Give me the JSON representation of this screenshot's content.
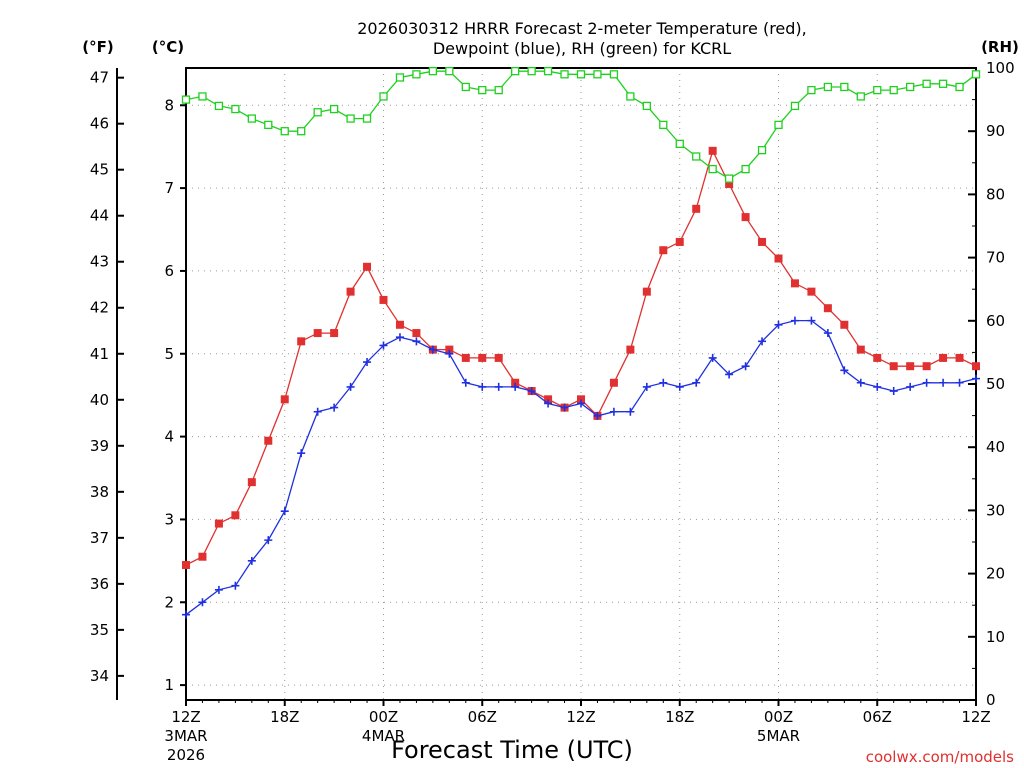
{
  "chart_data": {
    "type": "line",
    "title_line1": "2026030312 HRRR Forecast 2-meter Temperature (red),",
    "title_line2": "Dewpoint (blue), RH (green) for KCRL",
    "xlabel": "Forecast Time (UTC)",
    "credit": "coolwx.com/models",
    "units": {
      "fahrenheit": "(°F)",
      "celsius": "(°C)",
      "rh": "(RH)"
    },
    "x_hours": [
      0,
      1,
      2,
      3,
      4,
      5,
      6,
      7,
      8,
      9,
      10,
      11,
      12,
      13,
      14,
      15,
      16,
      17,
      18,
      19,
      20,
      21,
      22,
      23,
      24,
      25,
      26,
      27,
      28,
      29,
      30,
      31,
      32,
      33,
      34,
      35,
      36,
      37,
      38,
      39,
      40,
      41,
      42,
      43,
      44,
      45,
      46,
      47,
      48
    ],
    "xlim": [
      0,
      48
    ],
    "x_ticks": [
      {
        "hour": 0,
        "label": "12Z",
        "sub1": "3MAR",
        "sub2": "2026"
      },
      {
        "hour": 6,
        "label": "18Z",
        "sub1": "",
        "sub2": ""
      },
      {
        "hour": 12,
        "label": "00Z",
        "sub1": "4MAR",
        "sub2": ""
      },
      {
        "hour": 18,
        "label": "06Z",
        "sub1": "",
        "sub2": ""
      },
      {
        "hour": 24,
        "label": "12Z",
        "sub1": "",
        "sub2": ""
      },
      {
        "hour": 30,
        "label": "18Z",
        "sub1": "",
        "sub2": ""
      },
      {
        "hour": 36,
        "label": "00Z",
        "sub1": "5MAR",
        "sub2": ""
      },
      {
        "hour": 42,
        "label": "06Z",
        "sub1": "",
        "sub2": ""
      },
      {
        "hour": 48,
        "label": "12Z",
        "sub1": "",
        "sub2": ""
      }
    ],
    "celsius_axis": {
      "ylim": [
        0.82,
        8.45
      ],
      "ticks": [
        1,
        2,
        3,
        4,
        5,
        6,
        7,
        8
      ]
    },
    "fahrenheit_axis": {
      "ticks": [
        34,
        35,
        36,
        37,
        38,
        39,
        40,
        41,
        42,
        43,
        44,
        45,
        46,
        47
      ]
    },
    "rh_axis": {
      "ylim": [
        0,
        100
      ],
      "ticks": [
        0,
        10,
        20,
        30,
        40,
        50,
        60,
        70,
        80,
        90,
        100
      ]
    },
    "series": [
      {
        "name": "2-meter Temperature",
        "color": "#e03030",
        "marker": "filled-square",
        "axis": "celsius",
        "values": [
          2.45,
          2.55,
          2.95,
          3.05,
          3.45,
          3.95,
          4.45,
          5.15,
          5.25,
          5.25,
          5.75,
          6.05,
          5.65,
          5.35,
          5.25,
          5.05,
          5.05,
          4.95,
          4.95,
          4.95,
          4.65,
          4.55,
          4.45,
          4.35,
          4.45,
          4.25,
          4.65,
          5.05,
          5.75,
          6.25,
          6.35,
          6.75,
          7.45,
          7.05,
          6.65,
          6.35,
          6.15,
          5.85,
          5.75,
          5.55,
          5.35,
          5.05,
          4.95,
          4.85,
          4.85,
          4.85,
          4.95,
          4.95,
          4.85
        ]
      },
      {
        "name": "Dewpoint",
        "color": "#2030e0",
        "marker": "plus",
        "axis": "celsius",
        "values": [
          1.85,
          2.0,
          2.15,
          2.2,
          2.5,
          2.75,
          3.1,
          3.8,
          4.3,
          4.35,
          4.6,
          4.9,
          5.1,
          5.2,
          5.15,
          5.05,
          5.0,
          4.65,
          4.6,
          4.6,
          4.6,
          4.55,
          4.4,
          4.35,
          4.4,
          4.25,
          4.3,
          4.3,
          4.6,
          4.65,
          4.6,
          4.65,
          4.95,
          4.75,
          4.85,
          5.15,
          5.35,
          5.4,
          5.4,
          5.25,
          4.8,
          4.65,
          4.6,
          4.55,
          4.6,
          4.65,
          4.65,
          4.65,
          4.7
        ]
      },
      {
        "name": "RH",
        "color": "#20d020",
        "marker": "open-square",
        "axis": "rh",
        "values": [
          95,
          95.5,
          94,
          93.5,
          92,
          91,
          90,
          90,
          93,
          93.5,
          92,
          92,
          95.5,
          98.5,
          99,
          99.5,
          99.5,
          97,
          96.5,
          96.5,
          99.5,
          99.5,
          99.5,
          99,
          99,
          99,
          99,
          95.5,
          94,
          91,
          88,
          86,
          84,
          82.5,
          84,
          87,
          91,
          94,
          96.5,
          97,
          97,
          95.5,
          96.5,
          96.5,
          97,
          97.5,
          97.5,
          97,
          99
        ]
      }
    ]
  }
}
